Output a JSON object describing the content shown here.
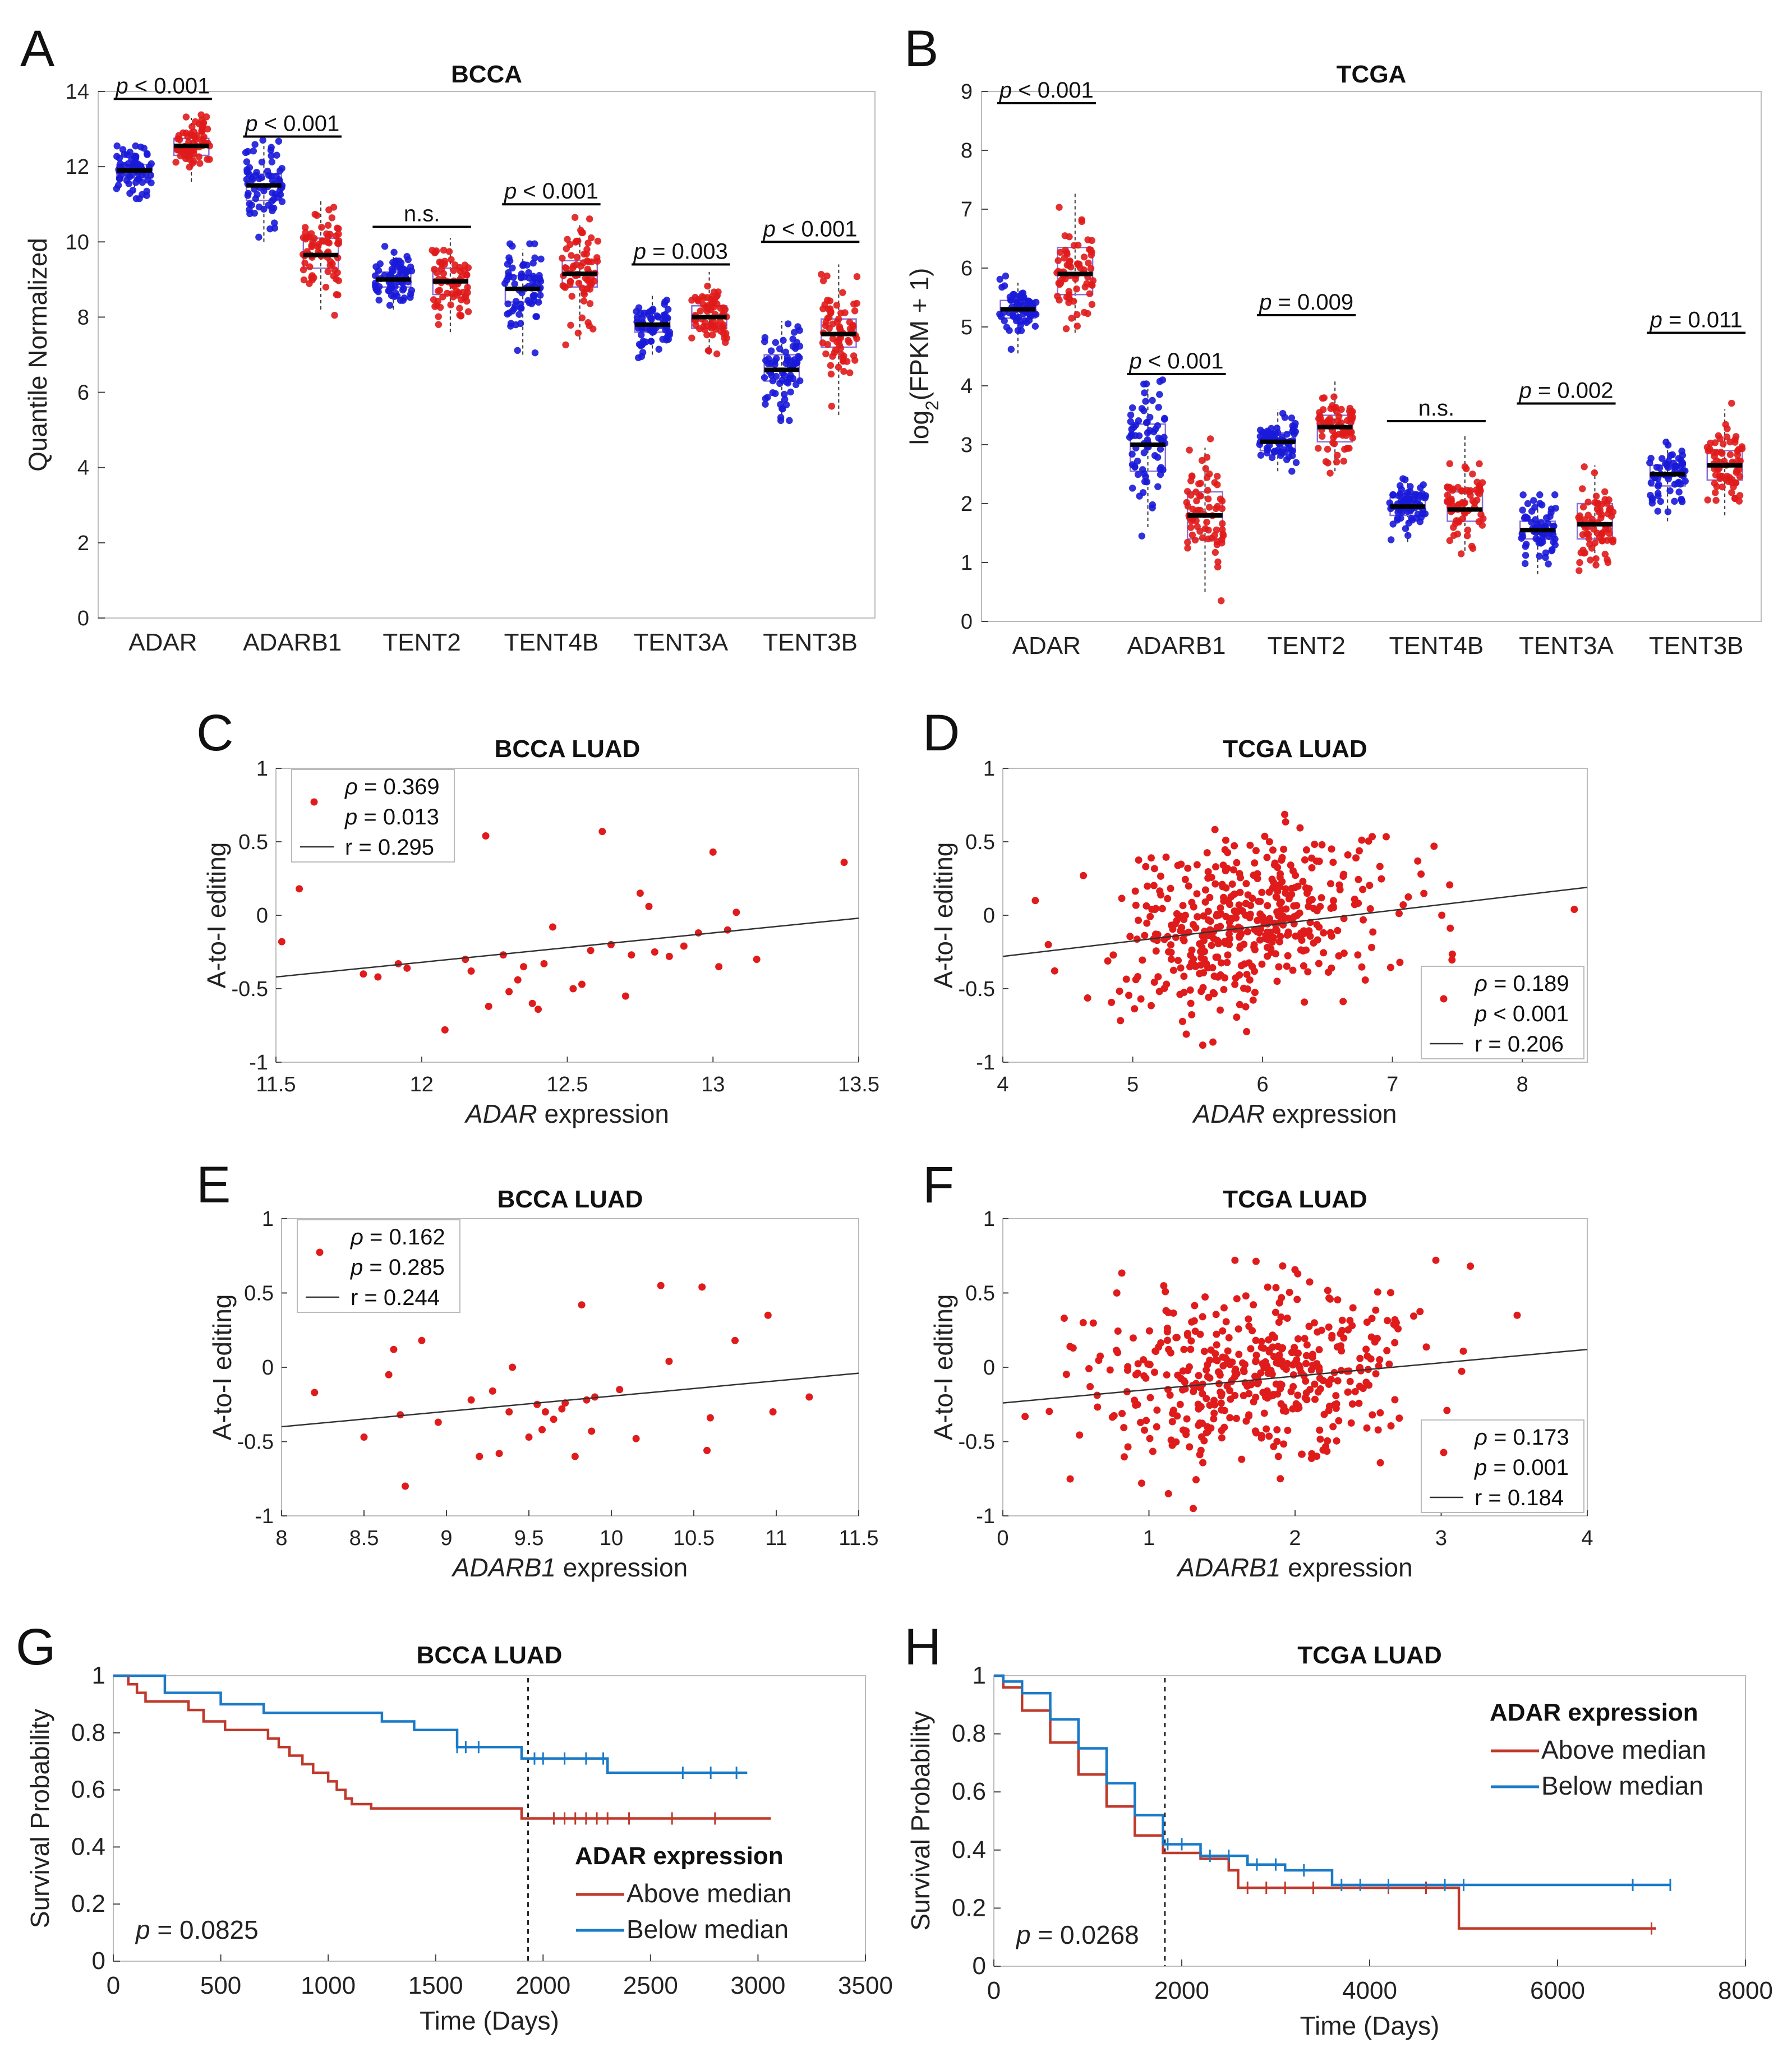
{
  "chart_data": [
    {
      "panel": "A",
      "type": "box",
      "title": "BCCA",
      "ylabel": "Quantile Normalized",
      "ylim": [
        0,
        14
      ],
      "yticks": [
        0,
        2,
        4,
        6,
        8,
        10,
        12,
        14
      ],
      "categories": [
        "ADAR",
        "ADARB1",
        "TENT2",
        "TENT4B",
        "TENT3A",
        "TENT3B"
      ],
      "series": [
        {
          "name": "blue",
          "color": "#1a1ad8",
          "medians": [
            11.9,
            11.5,
            9.0,
            8.75,
            7.8,
            6.6
          ],
          "q1": [
            11.7,
            11.1,
            8.8,
            8.4,
            7.6,
            6.3
          ],
          "q3": [
            12.05,
            11.8,
            9.2,
            9.1,
            8.0,
            7.0
          ],
          "whisker_low": [
            11.3,
            10.0,
            8.2,
            7.0,
            7.0,
            5.4
          ],
          "whisker_high": [
            12.4,
            12.6,
            9.8,
            9.8,
            8.6,
            7.9
          ],
          "spread": [
            0.35,
            0.55,
            0.3,
            0.7,
            0.35,
            0.65
          ]
        },
        {
          "name": "red",
          "color": "#e01b1b",
          "medians": [
            12.55,
            9.65,
            8.95,
            9.15,
            8.0,
            7.55
          ],
          "q1": [
            12.3,
            9.3,
            8.6,
            8.8,
            7.7,
            7.2
          ],
          "q3": [
            12.75,
            10.1,
            9.3,
            9.5,
            8.3,
            7.95
          ],
          "whisker_low": [
            11.6,
            8.2,
            7.6,
            7.4,
            7.0,
            5.4
          ],
          "whisker_high": [
            13.3,
            11.1,
            10.1,
            10.5,
            9.2,
            9.4
          ],
          "spread": [
            0.35,
            0.6,
            0.45,
            0.65,
            0.4,
            0.7
          ]
        }
      ],
      "annotations": [
        "p < 0.001",
        "p < 0.001",
        "n.s.",
        "p < 0.001",
        "p = 0.003",
        "p < 0.001"
      ],
      "annotation_y": [
        13.8,
        12.8,
        10.4,
        11.0,
        9.4,
        10.0
      ]
    },
    {
      "panel": "B",
      "type": "box",
      "title": "TCGA",
      "ylabel": "log2(FPKM + 1)",
      "ylim": [
        0,
        9
      ],
      "yticks": [
        0,
        1,
        2,
        3,
        4,
        5,
        6,
        7,
        8,
        9
      ],
      "categories": [
        "ADAR",
        "ADARB1",
        "TENT2",
        "TENT4B",
        "TENT3A",
        "TENT3B"
      ],
      "series": [
        {
          "name": "blue",
          "color": "#1a1ad8",
          "medians": [
            5.3,
            3.0,
            3.05,
            1.95,
            1.55,
            2.5
          ],
          "q1": [
            5.15,
            2.55,
            2.9,
            1.8,
            1.4,
            2.3
          ],
          "q3": [
            5.45,
            3.35,
            3.2,
            2.1,
            1.7,
            2.65
          ],
          "whisker_low": [
            4.55,
            1.6,
            2.55,
            1.35,
            0.8,
            1.7
          ],
          "whisker_high": [
            5.75,
            3.95,
            3.6,
            2.45,
            2.0,
            3.1
          ],
          "spread": [
            0.25,
            0.55,
            0.2,
            0.2,
            0.25,
            0.25
          ]
        },
        {
          "name": "red",
          "color": "#e01b1b",
          "medians": [
            5.9,
            1.8,
            3.3,
            1.9,
            1.65,
            2.65
          ],
          "q1": [
            5.55,
            1.4,
            3.05,
            1.7,
            1.4,
            2.4
          ],
          "q3": [
            6.35,
            2.2,
            3.5,
            2.2,
            2.0,
            2.9
          ],
          "whisker_low": [
            4.9,
            0.5,
            2.55,
            1.2,
            0.95,
            1.8
          ],
          "whisker_high": [
            7.3,
            2.95,
            4.1,
            3.15,
            2.65,
            3.6
          ],
          "spread": [
            0.45,
            0.5,
            0.3,
            0.35,
            0.35,
            0.35
          ]
        }
      ],
      "annotations": [
        "p < 0.001",
        "p < 0.001",
        "p = 0.009",
        "n.s.",
        "p = 0.002",
        "p = 0.011"
      ],
      "annotation_y": [
        8.8,
        4.2,
        5.2,
        3.4,
        3.7,
        4.9
      ]
    },
    {
      "panel": "C",
      "type": "scatter",
      "title": "BCCA  LUAD",
      "xlabel_italic": "ADAR",
      "xlabel_rest": " expression",
      "ylabel": "A-to-I editing",
      "xlim": [
        11.5,
        13.5
      ],
      "ylim": [
        -1,
        1
      ],
      "xticks": [
        "11.5",
        "12",
        "12.5",
        "13",
        "13.5"
      ],
      "yticks": [
        "1",
        "0.5",
        "0",
        "-0.5",
        "-1"
      ],
      "legend": {
        "rho": "= 0.369",
        "p": "= 0.013",
        "r": "r = 0.295",
        "position": "top-left"
      },
      "fit": [
        [
          11.5,
          -0.42
        ],
        [
          13.5,
          -0.02
        ]
      ],
      "x": [
        11.52,
        11.58,
        11.8,
        11.85,
        11.92,
        11.95,
        12.08,
        12.15,
        12.17,
        12.22,
        12.23,
        12.28,
        12.3,
        12.33,
        12.35,
        12.38,
        12.4,
        12.42,
        12.45,
        12.52,
        12.55,
        12.58,
        12.62,
        12.65,
        12.7,
        12.72,
        12.75,
        12.78,
        12.8,
        12.85,
        12.9,
        12.95,
        13.0,
        13.02,
        13.05,
        13.08,
        13.15,
        13.45
      ],
      "y": [
        -0.18,
        0.18,
        -0.4,
        -0.42,
        -0.33,
        -0.36,
        -0.78,
        -0.3,
        -0.38,
        0.54,
        -0.62,
        -0.27,
        -0.52,
        -0.44,
        -0.35,
        -0.6,
        -0.64,
        -0.33,
        -0.08,
        -0.5,
        -0.47,
        -0.24,
        0.57,
        -0.2,
        -0.55,
        -0.27,
        0.15,
        0.06,
        -0.25,
        -0.28,
        -0.21,
        -0.12,
        0.43,
        -0.35,
        -0.1,
        0.02,
        -0.3,
        0.36
      ]
    },
    {
      "panel": "D",
      "type": "scatter",
      "title": "TCGA LUAD",
      "xlabel_italic": "ADAR",
      "xlabel_rest": " expression",
      "ylabel": "A-to-I editing",
      "xlim": [
        4,
        8.5
      ],
      "ylim": [
        -1,
        1
      ],
      "xticks": [
        "4",
        "5",
        "6",
        "7",
        "8"
      ],
      "yticks": [
        "1",
        "0.5",
        "0",
        "-0.5",
        "-1"
      ],
      "legend": {
        "rho": "= 0.189",
        "p": "< 0.001",
        "r": "r = 0.206",
        "position": "bottom-right"
      },
      "fit": [
        [
          4,
          -0.28
        ],
        [
          8.5,
          0.19
        ]
      ],
      "generated": {
        "n": 450,
        "center": [
          5.9,
          -0.05
        ],
        "spread": [
          0.5,
          0.28
        ],
        "seed": 7,
        "trend": 0.11
      },
      "x": [
        4.25,
        4.35,
        4.62,
        7.22,
        7.32,
        7.38,
        8.4
      ],
      "y": [
        0.1,
        -0.2,
        0.27,
        0.28,
        0.47,
        0.0,
        0.04
      ]
    },
    {
      "panel": "E",
      "type": "scatter",
      "title": "BCCA LUAD",
      "xlabel_italic": "ADARB1",
      "xlabel_rest": " expression",
      "ylabel": "A-to-I editing",
      "xlim": [
        8,
        11.5
      ],
      "ylim": [
        -1,
        1
      ],
      "xticks": [
        "8",
        "8.5",
        "9",
        "9.5",
        "10",
        "10.5",
        "11",
        "11.5"
      ],
      "yticks": [
        "1",
        "0.5",
        "0",
        "-0.5",
        "-1"
      ],
      "legend": {
        "rho": "= 0.162",
        "p": "= 0.285",
        "r": "r = 0.244",
        "position": "top-left"
      },
      "fit": [
        [
          8,
          -0.4
        ],
        [
          11.5,
          -0.04
        ]
      ],
      "x": [
        8.2,
        8.5,
        8.65,
        8.68,
        8.72,
        8.75,
        8.85,
        8.95,
        9.15,
        9.2,
        9.28,
        9.32,
        9.38,
        9.4,
        9.5,
        9.55,
        9.58,
        9.6,
        9.65,
        9.7,
        9.72,
        9.78,
        9.82,
        9.85,
        9.88,
        9.9,
        10.05,
        10.15,
        10.3,
        10.35,
        10.55,
        10.58,
        10.6,
        10.75,
        10.95,
        10.98,
        11.2
      ],
      "y": [
        -0.17,
        -0.47,
        -0.05,
        0.12,
        -0.32,
        -0.8,
        0.18,
        -0.37,
        -0.22,
        -0.6,
        -0.16,
        -0.58,
        -0.3,
        0.0,
        -0.47,
        -0.25,
        -0.42,
        -0.3,
        -0.35,
        -0.28,
        -0.24,
        -0.6,
        0.42,
        -0.22,
        -0.43,
        -0.2,
        -0.15,
        -0.48,
        0.55,
        0.04,
        0.54,
        -0.56,
        -0.34,
        0.18,
        0.35,
        -0.3,
        -0.2
      ]
    },
    {
      "panel": "F",
      "type": "scatter",
      "title": "TCGA LUAD",
      "xlabel_italic": "ADARB1",
      "xlabel_rest": " expression",
      "ylabel": "A-to-I editing",
      "xlim": [
        0,
        4
      ],
      "ylim": [
        -1,
        1
      ],
      "xticks": [
        "0",
        "1",
        "2",
        "3",
        "4"
      ],
      "yticks": [
        "1",
        "0.5",
        "0",
        "-0.5",
        "-1"
      ],
      "legend": {
        "rho": "= 0.173",
        "p": "= 0.001",
        "r": "r = 0.184",
        "position": "bottom-right"
      },
      "fit": [
        [
          0,
          -0.24
        ],
        [
          4,
          0.12
        ]
      ],
      "generated": {
        "n": 450,
        "center": [
          1.75,
          -0.05
        ],
        "spread": [
          0.55,
          0.28
        ],
        "seed": 13,
        "trend": 0.09
      },
      "x": [
        0.42,
        0.46,
        0.55,
        0.78,
        3.2,
        3.52,
        0.95
      ],
      "y": [
        0.33,
        0.14,
        0.3,
        0.5,
        0.68,
        0.35,
        -0.78
      ]
    },
    {
      "panel": "G",
      "type": "line",
      "title": "BCCA LUAD",
      "xlabel": "Time (Days)",
      "ylabel": "Survival Probability",
      "xlim": [
        0,
        3500
      ],
      "ylim": [
        0,
        1
      ],
      "xticks": [
        "0",
        "500",
        "1000",
        "1500",
        "2000",
        "2500",
        "3000",
        "3500"
      ],
      "yticks": [
        "0",
        "0.2",
        "0.4",
        "0.6",
        "0.8",
        "1"
      ],
      "pvalue": "= 0.0825",
      "vline": 1930,
      "legend_title": "ADAR expression",
      "series": [
        {
          "name": "Above median",
          "color": "#c0392b",
          "x": [
            0,
            70,
            110,
            150,
            350,
            420,
            520,
            720,
            770,
            820,
            880,
            930,
            1000,
            1040,
            1080,
            1110,
            1160,
            1200,
            1900,
            3060
          ],
          "y": [
            1,
            0.97,
            0.94,
            0.91,
            0.88,
            0.84,
            0.81,
            0.78,
            0.75,
            0.72,
            0.69,
            0.66,
            0.63,
            0.6,
            0.57,
            0.55,
            0.55,
            0.535,
            0.5,
            0.5
          ],
          "censor_x": [
            2050,
            2100,
            2150,
            2200,
            2250,
            2300,
            2400,
            2600,
            2800
          ]
        },
        {
          "name": "Below median",
          "color": "#1a7ac8",
          "x": [
            0,
            240,
            500,
            700,
            1250,
            1400,
            1600,
            1900,
            2300,
            2950
          ],
          "y": [
            1,
            0.94,
            0.9,
            0.87,
            0.84,
            0.81,
            0.75,
            0.71,
            0.66,
            0.66
          ],
          "censor_x": [
            1600,
            1640,
            1700,
            1960,
            2000,
            2100,
            2200,
            2280,
            2650,
            2780,
            2900
          ]
        }
      ]
    },
    {
      "panel": "H",
      "type": "line",
      "title": "TCGA LUAD",
      "xlabel": "Time (Days)",
      "ylabel": "Survival Probability",
      "xlim": [
        0,
        8000
      ],
      "ylim": [
        0,
        1
      ],
      "xticks": [
        "0",
        "2000",
        "4000",
        "6000",
        "8000"
      ],
      "yticks": [
        "0",
        "0.2",
        "0.4",
        "0.6",
        "0.8",
        "1"
      ],
      "pvalue": "= 0.0268",
      "vline": 1820,
      "legend_title": "ADAR expression",
      "series": [
        {
          "name": "Above median",
          "color": "#c0392b",
          "x": [
            0,
            100,
            300,
            600,
            900,
            1200,
            1500,
            1800,
            2200,
            2500,
            2600,
            4950,
            4950,
            7050
          ],
          "y": [
            1,
            0.96,
            0.88,
            0.77,
            0.66,
            0.55,
            0.45,
            0.39,
            0.37,
            0.33,
            0.27,
            0.27,
            0.13,
            0.13
          ],
          "censor_x": [
            2700,
            2900,
            3100,
            3400,
            4200,
            4600,
            7000
          ]
        },
        {
          "name": "Below median",
          "color": "#1a7ac8",
          "x": [
            0,
            100,
            300,
            600,
            900,
            1200,
            1500,
            1800,
            2200,
            2700,
            3100,
            3600,
            4500,
            7200
          ],
          "y": [
            1,
            0.98,
            0.94,
            0.85,
            0.75,
            0.63,
            0.52,
            0.42,
            0.38,
            0.35,
            0.33,
            0.28,
            0.28,
            0.28
          ],
          "censor_x": [
            1850,
            2000,
            2300,
            2500,
            2800,
            3000,
            3300,
            3700,
            3900,
            4200,
            4800,
            5000,
            6800,
            7200
          ]
        }
      ]
    }
  ]
}
